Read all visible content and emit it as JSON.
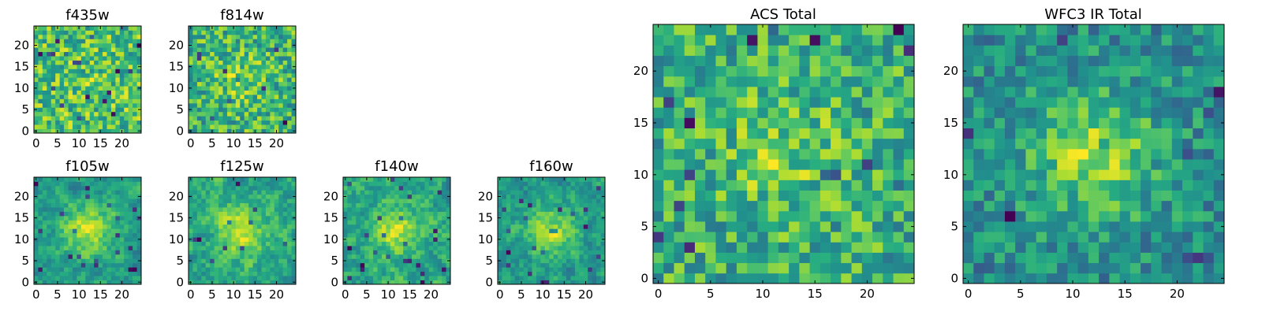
{
  "chart_data": [
    {
      "type": "heatmap",
      "title": "f435w",
      "grid_size": 25,
      "colormap": "viridis",
      "seed": 11,
      "peak": 0.04,
      "smooth": 0,
      "xticks": [
        "0",
        "5",
        "10",
        "15",
        "20"
      ],
      "yticks": [
        "0",
        "5",
        "10",
        "15",
        "20"
      ],
      "xlim": [
        0,
        24
      ],
      "ylim": [
        0,
        24
      ]
    },
    {
      "type": "heatmap",
      "title": "f814w",
      "grid_size": 25,
      "colormap": "viridis",
      "seed": 23,
      "peak": 0.12,
      "smooth": 0,
      "xticks": [
        "0",
        "5",
        "10",
        "15",
        "20"
      ],
      "yticks": [
        "0",
        "5",
        "10",
        "15",
        "20"
      ],
      "xlim": [
        0,
        24
      ],
      "ylim": [
        0,
        24
      ]
    },
    {
      "type": "heatmap",
      "title": "f105w",
      "grid_size": 25,
      "colormap": "viridis",
      "seed": 37,
      "peak": 0.35,
      "smooth": 1,
      "xticks": [
        "0",
        "5",
        "10",
        "15",
        "20"
      ],
      "yticks": [
        "0",
        "5",
        "10",
        "15",
        "20"
      ],
      "xlim": [
        0,
        24
      ],
      "ylim": [
        0,
        24
      ]
    },
    {
      "type": "heatmap",
      "title": "f125w",
      "grid_size": 25,
      "colormap": "viridis",
      "seed": 41,
      "peak": 0.3,
      "smooth": 1,
      "xticks": [
        "0",
        "5",
        "10",
        "15",
        "20"
      ],
      "yticks": [
        "0",
        "5",
        "10",
        "15",
        "20"
      ],
      "xlim": [
        0,
        24
      ],
      "ylim": [
        0,
        24
      ]
    },
    {
      "type": "heatmap",
      "title": "f140w",
      "grid_size": 25,
      "colormap": "viridis",
      "seed": 53,
      "peak": 0.25,
      "smooth": 1,
      "xticks": [
        "0",
        "5",
        "10",
        "15",
        "20"
      ],
      "yticks": [
        "0",
        "5",
        "10",
        "15",
        "20"
      ],
      "xlim": [
        0,
        24
      ],
      "ylim": [
        0,
        24
      ]
    },
    {
      "type": "heatmap",
      "title": "f160w",
      "grid_size": 25,
      "colormap": "viridis",
      "seed": 67,
      "peak": 0.3,
      "smooth": 1,
      "xticks": [
        "0",
        "5",
        "10",
        "15",
        "20"
      ],
      "yticks": [
        "0",
        "5",
        "10",
        "15",
        "20"
      ],
      "xlim": [
        0,
        24
      ],
      "ylim": [
        0,
        24
      ]
    },
    {
      "type": "heatmap",
      "title": "ACS Total",
      "grid_size": 25,
      "colormap": "viridis",
      "seed": 79,
      "peak": 0.15,
      "smooth": 0,
      "xticks": [
        "0",
        "5",
        "10",
        "15",
        "20"
      ],
      "yticks": [
        "0",
        "5",
        "10",
        "15",
        "20"
      ],
      "xlim": [
        0,
        24
      ],
      "ylim": [
        0,
        24
      ]
    },
    {
      "type": "heatmap",
      "title": "WFC3 IR Total",
      "grid_size": 25,
      "colormap": "viridis",
      "seed": 97,
      "peak": 0.45,
      "smooth": 0,
      "xticks": [
        "0",
        "5",
        "10",
        "15",
        "20"
      ],
      "yticks": [
        "0",
        "5",
        "10",
        "15",
        "20"
      ],
      "xlim": [
        0,
        24
      ],
      "ylim": [
        0,
        24
      ]
    }
  ]
}
